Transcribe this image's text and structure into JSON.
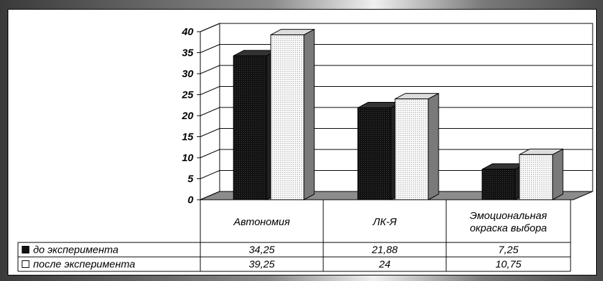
{
  "chart_data": {
    "type": "bar",
    "categories": [
      "Автономия",
      "ЛК-Я",
      [
        "Эмоциональная",
        "окраска выбора"
      ]
    ],
    "series": [
      {
        "name": "до эксперимента",
        "values": [
          34.25,
          21.88,
          7.25
        ],
        "value_labels": [
          "34,25",
          "21,88",
          "7,25"
        ],
        "color": "#111111"
      },
      {
        "name": "после эксперимента",
        "values": [
          39.25,
          24,
          10.75
        ],
        "value_labels": [
          "39,25",
          "24",
          "10,75"
        ],
        "color": "#f2f2f2"
      }
    ],
    "ylim": [
      0,
      40
    ],
    "yticks": [
      "0",
      "5",
      "10",
      "15",
      "20",
      "25",
      "30",
      "35",
      "40"
    ],
    "grid": true,
    "legend": "data-table",
    "title": "",
    "xlabel": "",
    "ylabel": ""
  }
}
